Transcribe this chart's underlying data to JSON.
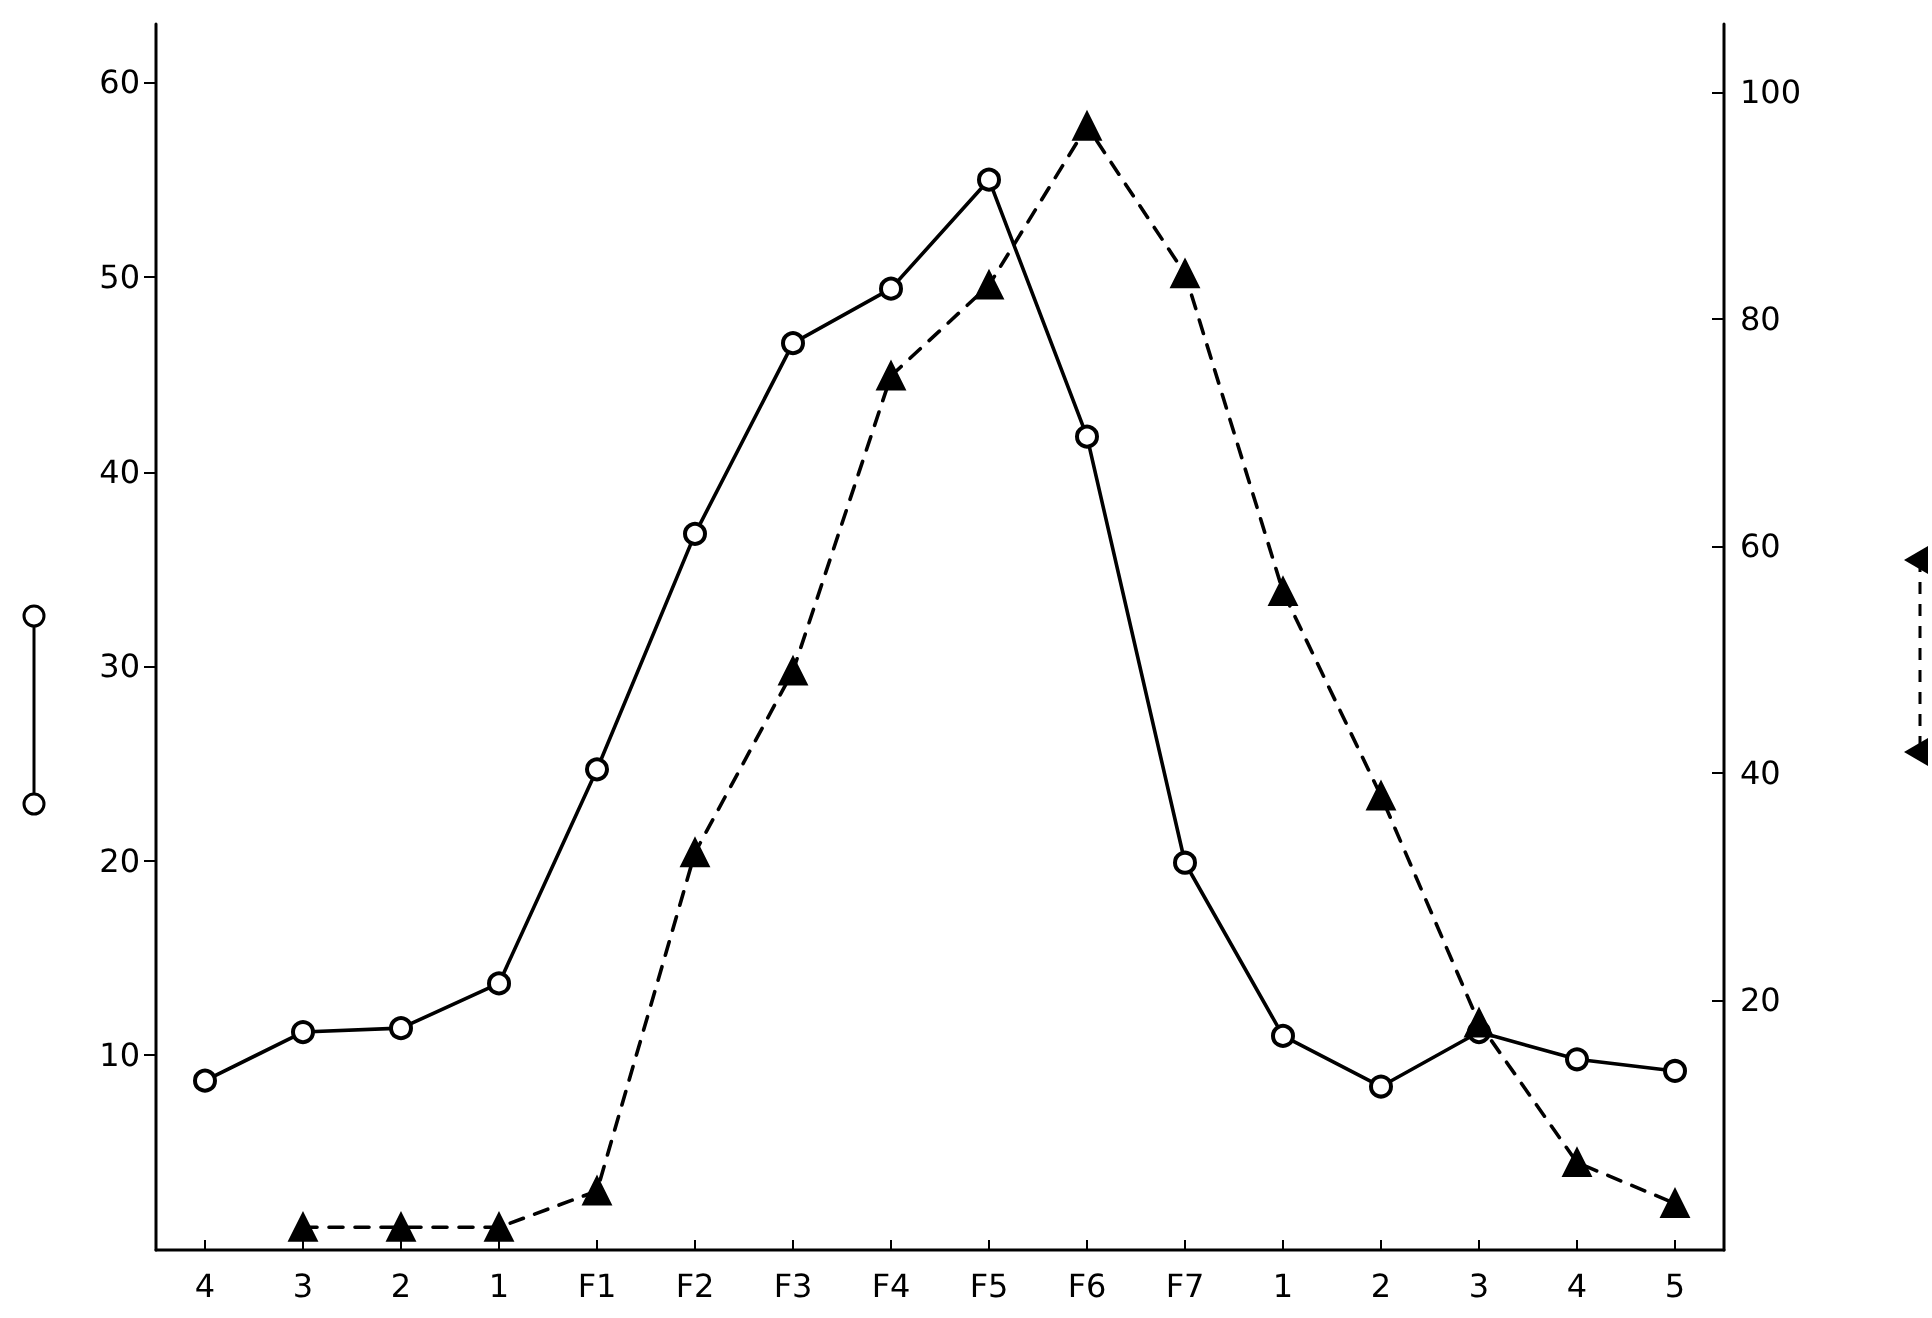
{
  "chart_data": {
    "type": "line",
    "categories": [
      "4",
      "3",
      "2",
      "1",
      "F1",
      "F2",
      "F3",
      "F4",
      "F5",
      "F6",
      "F7",
      "1",
      "2",
      "3",
      "4",
      "5"
    ],
    "series": [
      {
        "color": "#000000",
        "marker": "circle",
        "line_style": "solid",
        "values": [
          8.7,
          11.2,
          11.4,
          13.7,
          24.7,
          36.8,
          46.6,
          49.4,
          55,
          41.8,
          19.9,
          11,
          8.4,
          11.2,
          9.8,
          9.2
        ]
      },
      {
        "color": "#000000",
        "marker": "triangle",
        "line_style": "dashed",
        "axis": "y2",
        "values": [
          null,
          0,
          0,
          0,
          3.2,
          33,
          49,
          75,
          83,
          97,
          84,
          56,
          38,
          18,
          5.7,
          2.1
        ]
      }
    ],
    "ylim": [
      0,
      63
    ],
    "yticks": [
      10,
      20,
      30,
      40,
      50,
      60
    ],
    "y2lim": [
      -2,
      106
    ],
    "y2ticks": [
      20,
      40,
      60,
      80,
      100
    ]
  }
}
